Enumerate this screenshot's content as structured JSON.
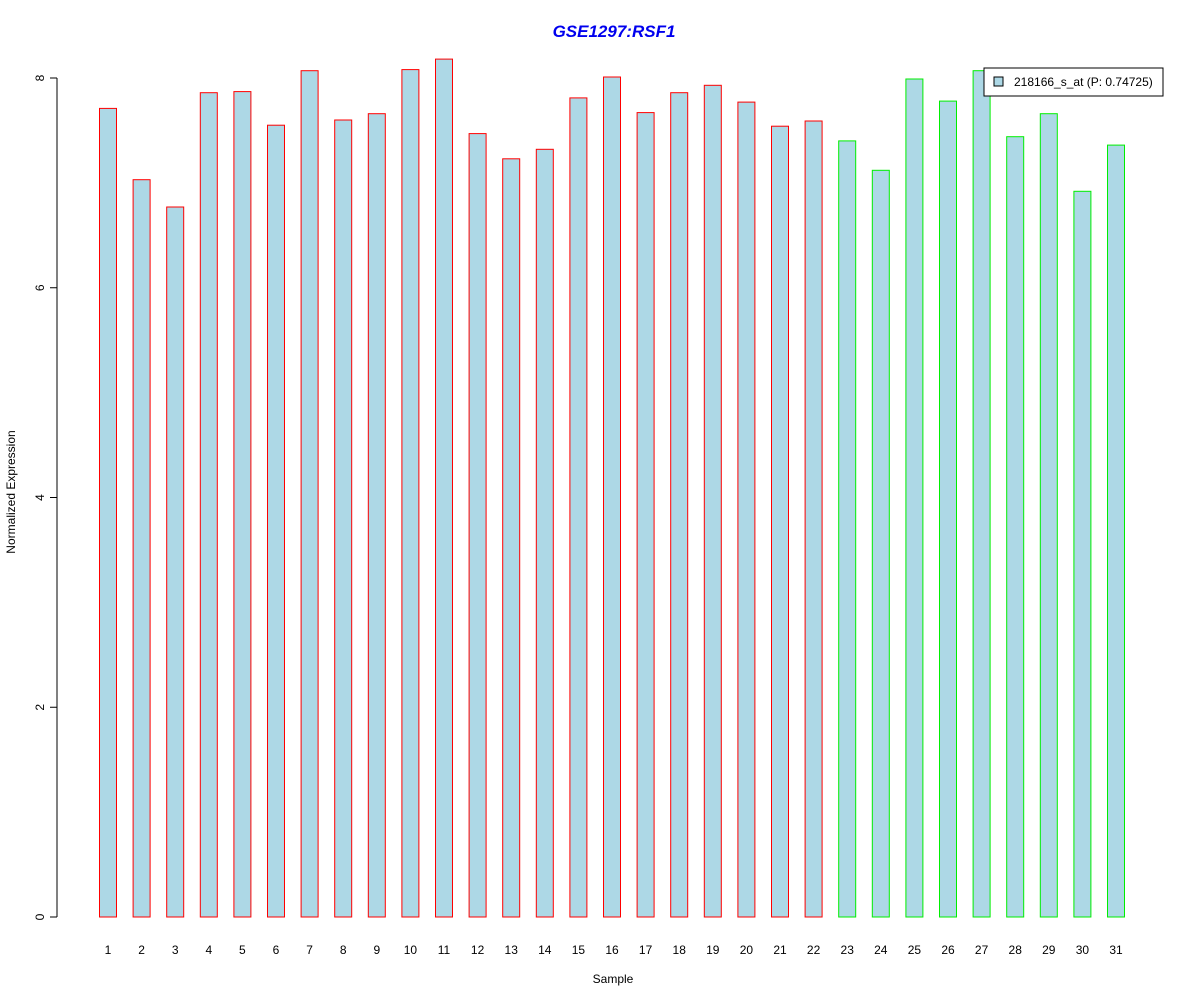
{
  "colors": {
    "title": "#0000ee",
    "bar_fill": "#add8e6",
    "group1_border": "#ff0000",
    "group2_border": "#00ee00",
    "legend_swatch": "#add8e6"
  },
  "chart_data": {
    "type": "bar",
    "title": "GSE1297:RSF1",
    "xlabel": "Sample",
    "ylabel": "Normalized Expression",
    "ylim": [
      0,
      8.2
    ],
    "yticks": [
      0,
      2,
      4,
      6,
      8
    ],
    "grid": false,
    "legend_position": "top-right",
    "categories": [
      "1",
      "2",
      "3",
      "4",
      "5",
      "6",
      "7",
      "8",
      "9",
      "10",
      "11",
      "12",
      "13",
      "14",
      "15",
      "16",
      "17",
      "18",
      "19",
      "20",
      "21",
      "22",
      "23",
      "24",
      "25",
      "26",
      "27",
      "28",
      "29",
      "30",
      "31"
    ],
    "series": [
      {
        "name": "218166_s_at (P: 0.74725)",
        "values": [
          7.71,
          7.03,
          6.77,
          7.86,
          7.87,
          7.55,
          8.07,
          7.6,
          7.66,
          8.08,
          8.18,
          7.47,
          7.23,
          7.32,
          7.81,
          8.01,
          7.67,
          7.86,
          7.93,
          7.77,
          7.54,
          7.59,
          7.4,
          7.12,
          7.99,
          7.78,
          8.07,
          7.44,
          7.66,
          6.92,
          7.36
        ]
      }
    ],
    "group_of_sample": [
      1,
      1,
      1,
      1,
      1,
      1,
      1,
      1,
      1,
      1,
      1,
      1,
      1,
      1,
      1,
      1,
      1,
      1,
      1,
      1,
      1,
      1,
      2,
      2,
      2,
      2,
      2,
      2,
      2,
      2,
      2
    ]
  }
}
